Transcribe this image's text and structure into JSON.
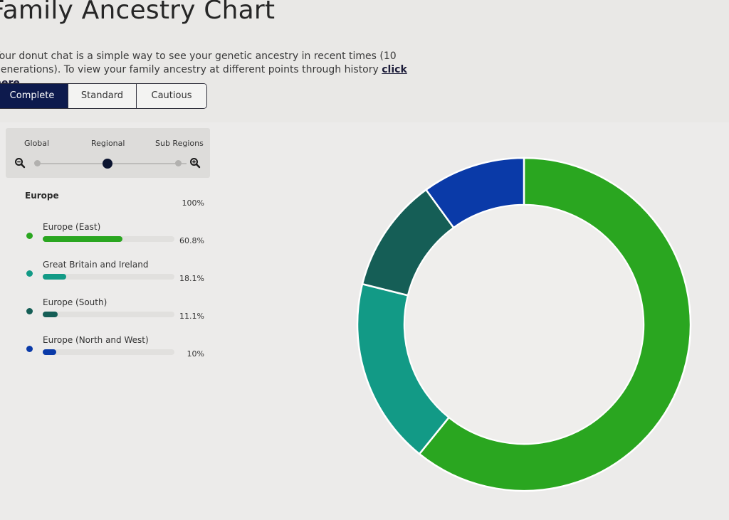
{
  "header": {
    "title": "Family Ancestry Chart",
    "intro_text": "Your donut chat is a simple way to see your genetic ancestry in recent times (10 generations). To view your family ancestry at different points through history",
    "intro_link": "click here",
    "intro_end": "."
  },
  "tabs": [
    {
      "label": "Complete",
      "active": true
    },
    {
      "label": "Standard",
      "active": false
    },
    {
      "label": "Cautious",
      "active": false
    }
  ],
  "detail_slider": {
    "labels": [
      "Global",
      "Regional",
      "Sub Regions"
    ],
    "selected": "Regional",
    "zoom_out_icon": "zoom-out-icon",
    "zoom_in_icon": "zoom-in-icon"
  },
  "region": {
    "name": "Europe",
    "total": "100%"
  },
  "breakdown": [
    {
      "label": "Europe (East)",
      "percent_text": "60.8%",
      "value": 60.8,
      "color": "#2aa620"
    },
    {
      "label": "Great Britain and Ireland",
      "percent_text": "18.1%",
      "value": 18.1,
      "color": "#129a86"
    },
    {
      "label": "Europe (South)",
      "percent_text": "11.1%",
      "value": 11.1,
      "color": "#155e56"
    },
    {
      "label": "Europe (North and West)",
      "percent_text": "10%",
      "value": 10,
      "color": "#0a3aa8"
    }
  ],
  "chart_data": {
    "type": "pie",
    "donut": true,
    "categories": [
      "Europe (East)",
      "Great Britain and Ireland",
      "Europe (South)",
      "Europe (North and West)"
    ],
    "values": [
      60.8,
      18.1,
      11.1,
      10
    ],
    "colors": [
      "#2aa620",
      "#129a86",
      "#155e56",
      "#0a3aa8"
    ],
    "title": "",
    "start": "top, clockwise"
  }
}
